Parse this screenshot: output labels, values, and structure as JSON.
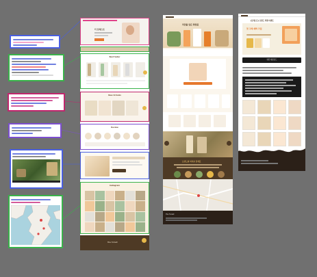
{
  "colors": {
    "canvas": "#707070",
    "brown": "#4e3a25",
    "cream": "#f7ecd7",
    "orange": "#e6782d",
    "note_blue": "#4a5fe0",
    "note_green": "#39b34a",
    "note_magenta": "#c0266d",
    "note_purple": "#7d4fd0"
  },
  "annotations": [
    {
      "id": "1",
      "border": "#4a5fe0",
      "icon": "text-annotation"
    },
    {
      "id": "2",
      "border": "#39b34a",
      "icon": "text-annotation"
    },
    {
      "id": "3",
      "border": "#c0266d",
      "icon": "text-annotation"
    },
    {
      "id": "4",
      "border": "#7d4fd0",
      "icon": "text-annotation"
    },
    {
      "id": "5",
      "border": "#4a5fe0",
      "icon": "text-annotation"
    },
    {
      "id": "6",
      "border": "#39b34a",
      "icon": "text-annotation"
    }
  ],
  "center_page": {
    "hero_label": "더 포레스트",
    "section_best": "Best Seller",
    "section_new": "New Arrivals",
    "section_review": "Review",
    "section_insta": "Instagram",
    "logo": "the forest"
  },
  "page_b": {
    "hero_title": "자연을 담은 화장품",
    "brand_heading": "브랜드를 여러분 함께요",
    "footer_logo": "the forest"
  },
  "page_c": {
    "hero_title": "[포레스트] 브랜드 특별 이벤트",
    "banner": "첫 구매 혜택 가입",
    "cta": "쿠폰 다운로드"
  }
}
